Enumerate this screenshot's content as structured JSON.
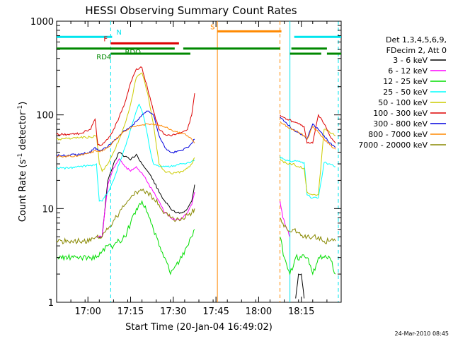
{
  "chart_data": {
    "type": "line",
    "title": "HESSI Observing Summary Count Rates",
    "xlabel": "Start Time (20-Jan-04 16:49:02)",
    "ylabel_main": "Count Rate (s",
    "ylabel_exp1": "-1",
    "ylabel_mid": " detector",
    "ylabel_exp2": "-1",
    "ylabel_end": ")",
    "x_unit": "minutes since 16:49:02",
    "xlim": [
      0,
      100
    ],
    "ylim": [
      1,
      1000
    ],
    "yscale": "log",
    "x_ticks": [
      {
        "x": 11,
        "label": "17:00"
      },
      {
        "x": 26,
        "label": "17:15"
      },
      {
        "x": 41,
        "label": "17:30"
      },
      {
        "x": 56,
        "label": "17:45"
      },
      {
        "x": 71,
        "label": "18:00"
      },
      {
        "x": 86,
        "label": "18:15"
      }
    ],
    "y_ticks": [
      {
        "y": 1,
        "label": "1"
      },
      {
        "y": 10,
        "label": "10"
      },
      {
        "y": 100,
        "label": "100"
      },
      {
        "y": 1000,
        "label": "1000"
      }
    ],
    "legend_header": [
      "Det 1,3,4,5,6,9,",
      "FDecim 2, Att 0"
    ],
    "legend_position": "right",
    "footer_date": "24-Mar-2010 08:45",
    "series": [
      {
        "name": "3 - 6 keV",
        "color": "#000000",
        "x": [
          14,
          16,
          18,
          20,
          22,
          24,
          26,
          28,
          30,
          32,
          34,
          36,
          38,
          40,
          42,
          44,
          46,
          47.5,
          48.5,
          84,
          85,
          86,
          87
        ],
        "y": [
          5,
          5,
          20,
          30,
          40,
          36,
          33,
          38,
          30,
          25,
          20,
          15,
          12,
          10,
          9,
          9,
          10,
          12,
          18,
          1.1,
          2,
          2,
          1.1
        ]
      },
      {
        "name": "6 - 12 keV",
        "color": "#ff00ff",
        "x": [
          14,
          16,
          18,
          20,
          22,
          24,
          26,
          28,
          30,
          32,
          34,
          36,
          38,
          40,
          42,
          44,
          46,
          47.5,
          48.5,
          78.5,
          79.5,
          81,
          82
        ],
        "y": [
          5,
          5,
          18,
          27,
          34,
          28,
          25,
          28,
          24,
          19,
          15,
          12,
          9,
          8,
          7.5,
          8,
          9,
          11,
          15,
          12,
          8,
          6,
          5
        ]
      },
      {
        "name": "12 - 25 keV",
        "color": "#00dd00",
        "x": [
          0,
          4,
          8,
          12,
          14,
          16,
          18,
          20,
          22,
          24,
          26,
          28,
          30,
          32,
          34,
          36,
          38,
          40,
          42,
          44,
          46,
          47.5,
          48.5,
          78.5,
          80,
          82,
          84,
          86,
          88,
          90,
          92,
          94,
          96,
          98
        ],
        "y": [
          3,
          3,
          3,
          3,
          3,
          3.5,
          4,
          4,
          4.5,
          5,
          7,
          10,
          12,
          9,
          6,
          4,
          3,
          2,
          2.5,
          3,
          4,
          5,
          6,
          5,
          3,
          2,
          3,
          3,
          3,
          2,
          3,
          3,
          3,
          2
        ]
      },
      {
        "name": "25 - 50 keV",
        "color": "#00ffff",
        "x": [
          0,
          4,
          8,
          12,
          14,
          15,
          16,
          18,
          20,
          22,
          24,
          26,
          28,
          29,
          30,
          31,
          32,
          33,
          34,
          36,
          38,
          40,
          42,
          44,
          46,
          47.5,
          48.5,
          78.5,
          79.5,
          81,
          83,
          85,
          87,
          88,
          90,
          92,
          94,
          96,
          98
        ],
        "y": [
          27,
          27,
          28,
          29,
          30,
          12,
          12,
          15,
          20,
          30,
          45,
          70,
          110,
          130,
          110,
          85,
          60,
          40,
          30,
          28,
          28,
          28,
          29,
          30,
          31,
          32,
          33,
          36,
          34,
          33,
          32,
          32,
          31,
          14,
          13,
          13,
          31,
          30,
          28
        ]
      },
      {
        "name": "50 - 100 keV",
        "color": "#cccc00",
        "x": [
          0,
          4,
          8,
          12,
          14,
          15,
          16,
          18,
          20,
          22,
          24,
          26,
          28,
          30,
          32,
          34,
          36,
          38,
          40,
          42,
          44,
          46,
          47.5,
          48.5,
          78.5,
          79.5,
          81,
          83,
          85,
          87,
          88,
          90,
          92,
          94,
          96,
          98
        ],
        "y": [
          55,
          56,
          57,
          58,
          60,
          30,
          25,
          30,
          40,
          55,
          80,
          130,
          250,
          280,
          170,
          80,
          30,
          25,
          24,
          24,
          25,
          27,
          30,
          35,
          34,
          32,
          30,
          30,
          28,
          27,
          15,
          14,
          14,
          70,
          65,
          60
        ]
      },
      {
        "name": "100 - 300 keV",
        "color": "#dd0000",
        "x": [
          0,
          4,
          8,
          12,
          13.5,
          14.5,
          16,
          18,
          20,
          22,
          24,
          26,
          28,
          30,
          32,
          34,
          36,
          38,
          40,
          42,
          44,
          46,
          47.5,
          48.5,
          78.5,
          79.5,
          81,
          83,
          85,
          87,
          88,
          90,
          92,
          94,
          96,
          98
        ],
        "y": [
          62,
          62,
          63,
          70,
          90,
          48,
          48,
          55,
          70,
          95,
          135,
          220,
          310,
          320,
          190,
          110,
          70,
          62,
          60,
          62,
          65,
          70,
          100,
          170,
          100,
          95,
          90,
          85,
          80,
          75,
          50,
          50,
          100,
          80,
          60,
          50
        ]
      },
      {
        "name": "300 - 800 keV",
        "color": "#0000dd",
        "x": [
          0,
          4,
          8,
          12,
          13.5,
          14.5,
          16,
          18,
          20,
          22,
          24,
          26,
          28,
          30,
          32,
          34,
          36,
          38,
          40,
          42,
          44,
          46,
          47.5,
          48.5,
          78.5,
          79.5,
          81,
          83,
          85,
          87,
          88,
          90,
          92,
          94,
          96,
          98
        ],
        "y": [
          37,
          37,
          38,
          40,
          45,
          42,
          42,
          46,
          52,
          60,
          68,
          75,
          85,
          100,
          110,
          100,
          60,
          45,
          40,
          40,
          42,
          45,
          50,
          55,
          95,
          90,
          80,
          70,
          65,
          60,
          55,
          80,
          70,
          60,
          50,
          45
        ]
      },
      {
        "name": "800 - 7000 keV",
        "color": "#ff8800",
        "x": [
          0,
          4,
          8,
          12,
          13.5,
          14.5,
          16,
          18,
          20,
          22,
          24,
          26,
          28,
          30,
          32,
          34,
          36,
          38,
          40,
          42,
          44,
          46,
          47.5,
          48.5,
          78.5,
          79.5,
          81,
          83,
          85,
          87,
          88,
          90,
          92,
          94,
          96,
          98
        ],
        "y": [
          36,
          36,
          37,
          39,
          42,
          41,
          41,
          45,
          52,
          60,
          67,
          72,
          76,
          78,
          80,
          80,
          78,
          74,
          70,
          66,
          63,
          60,
          55,
          50,
          85,
          80,
          75,
          70,
          65,
          60,
          55,
          75,
          65,
          55,
          48,
          43
        ]
      },
      {
        "name": "7000 - 20000 keV",
        "color": "#888800",
        "x": [
          0,
          4,
          8,
          12,
          14,
          16,
          18,
          20,
          22,
          24,
          26,
          28,
          30,
          32,
          34,
          36,
          38,
          40,
          42,
          44,
          46,
          47.5,
          48.5,
          78.5,
          79.5,
          81,
          83,
          85,
          87,
          88,
          90,
          92,
          94,
          96,
          98
        ],
        "y": [
          4.5,
          4.5,
          4.5,
          4.5,
          5,
          5,
          6,
          7.5,
          9,
          11,
          13,
          15,
          15.5,
          15,
          13,
          11,
          9,
          8,
          7.5,
          8,
          8.5,
          9,
          10,
          8,
          7,
          6,
          6,
          5.5,
          5,
          5,
          5,
          5,
          4.5,
          4.5,
          4.5
        ]
      }
    ],
    "flags": [
      {
        "label": "N",
        "color": "#00e5ee",
        "y": 680,
        "label_x": 21.0,
        "segments": [
          [
            0,
            19.5
          ],
          [
            83.5,
            100
          ]
        ]
      },
      {
        "label": "S",
        "color": "#ff8800",
        "y": 780,
        "label_x": 54.0,
        "segments": [
          [
            56.5,
            79
          ]
        ]
      },
      {
        "label": "F",
        "color": "#dd0000",
        "y": 580,
        "label_x": 16.5,
        "segments": [
          [
            19,
            43
          ]
        ]
      },
      {
        "label": "RDO",
        "color": "#008800",
        "y": 510,
        "label_x": 24.0,
        "segments": [
          [
            0,
            41.5
          ],
          [
            44.5,
            78.5
          ],
          [
            82.5,
            95
          ]
        ]
      },
      {
        "label": "RD4",
        "color": "#008800",
        "y": 450,
        "label_x": 14.0,
        "segments": [
          [
            19,
            47
          ],
          [
            82,
            93
          ],
          [
            95,
            100
          ]
        ]
      }
    ],
    "vertical_markers": [
      {
        "x": 19,
        "color": "#00e5ee",
        "style": "dashed"
      },
      {
        "x": 56.5,
        "color": "#ff8800",
        "style": "solid"
      },
      {
        "x": 78.5,
        "color": "#ff8800",
        "style": "dashed"
      },
      {
        "x": 82,
        "color": "#00e5ee",
        "style": "solid"
      },
      {
        "x": 99,
        "color": "#00e5ee",
        "style": "dashed"
      }
    ]
  }
}
